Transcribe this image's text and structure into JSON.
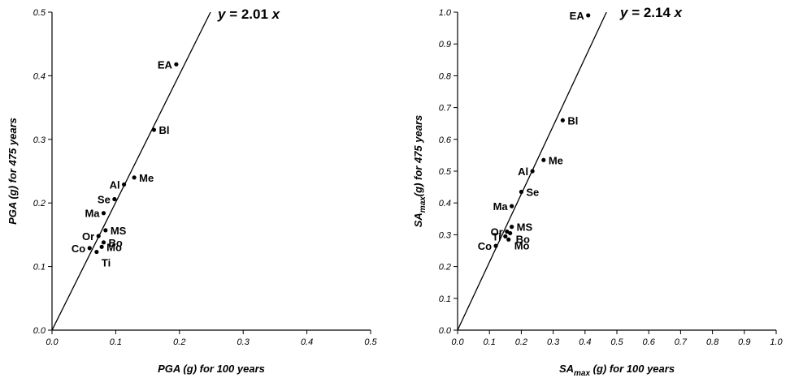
{
  "chart_data": [
    {
      "type": "scatter",
      "xlabel": "PGA (g) for 100 years",
      "ylabel": "PGA (g) for 475 years",
      "xlim": [
        0,
        0.5
      ],
      "ylim": [
        0,
        0.5
      ],
      "xticks": [
        "0.0",
        "0.1",
        "0.2",
        "0.3",
        "0.4",
        "0.5"
      ],
      "yticks": [
        "0.0",
        "0.1",
        "0.2",
        "0.3",
        "0.4",
        "0.5"
      ],
      "fit_slope": 2.01,
      "equation": {
        "prefix": "y",
        "middle": " = 2.01 ",
        "suffix": "x"
      },
      "points": [
        {
          "label": "EA",
          "x": 0.195,
          "y": 0.418,
          "pos": "left"
        },
        {
          "label": "Bl",
          "x": 0.16,
          "y": 0.315,
          "pos": "right"
        },
        {
          "label": "Me",
          "x": 0.129,
          "y": 0.24,
          "pos": "right"
        },
        {
          "label": "Al",
          "x": 0.113,
          "y": 0.229,
          "pos": "left"
        },
        {
          "label": "Se",
          "x": 0.098,
          "y": 0.206,
          "pos": "left"
        },
        {
          "label": "Ma",
          "x": 0.081,
          "y": 0.184,
          "pos": "left"
        },
        {
          "label": "MS",
          "x": 0.084,
          "y": 0.157,
          "pos": "right"
        },
        {
          "label": "Or",
          "x": 0.073,
          "y": 0.148,
          "pos": "left"
        },
        {
          "label": "Bo",
          "x": 0.081,
          "y": 0.138,
          "pos": "right"
        },
        {
          "label": "Mo",
          "x": 0.078,
          "y": 0.131,
          "pos": "right"
        },
        {
          "label": "Co",
          "x": 0.059,
          "y": 0.129,
          "pos": "left"
        },
        {
          "label": "Ti",
          "x": 0.07,
          "y": 0.123,
          "pos": "below"
        }
      ]
    },
    {
      "type": "scatter",
      "xlabel": {
        "pre": "SA",
        "sub": "max",
        "post": " (g) for 100 years"
      },
      "ylabel": {
        "pre": "SA",
        "sub": "max",
        "post": "(g) for 475 years"
      },
      "xlim": [
        0,
        1.0
      ],
      "ylim": [
        0,
        1.0
      ],
      "xticks": [
        "0.0",
        "0.1",
        "0.2",
        "0.3",
        "0.4",
        "0.5",
        "0.6",
        "0.7",
        "0.8",
        "0.9",
        "1.0"
      ],
      "yticks": [
        "0.0",
        "0.1",
        "0.2",
        "0.3",
        "0.4",
        "0.5",
        "0.6",
        "0.7",
        "0.8",
        "0.9",
        "1.0"
      ],
      "fit_slope": 2.14,
      "equation": {
        "prefix": "y",
        "middle": " = 2.14 ",
        "suffix": "x"
      },
      "points": [
        {
          "label": "EA",
          "x": 0.41,
          "y": 0.99,
          "pos": "left"
        },
        {
          "label": "Bl",
          "x": 0.33,
          "y": 0.66,
          "pos": "right"
        },
        {
          "label": "Me",
          "x": 0.27,
          "y": 0.535,
          "pos": "right"
        },
        {
          "label": "Al",
          "x": 0.235,
          "y": 0.5,
          "pos": "left"
        },
        {
          "label": "Se",
          "x": 0.2,
          "y": 0.435,
          "pos": "right"
        },
        {
          "label": "Ma",
          "x": 0.17,
          "y": 0.39,
          "pos": "left"
        },
        {
          "label": "MS",
          "x": 0.17,
          "y": 0.325,
          "pos": "right"
        },
        {
          "label": "Or",
          "x": 0.155,
          "y": 0.31,
          "pos": "left"
        },
        {
          "label": "Ti",
          "x": 0.15,
          "y": 0.295,
          "pos": "left"
        },
        {
          "label": "Bo",
          "x": 0.165,
          "y": 0.305,
          "pos": "right-below"
        },
        {
          "label": "Co",
          "x": 0.12,
          "y": 0.265,
          "pos": "left"
        },
        {
          "label": "Mo",
          "x": 0.16,
          "y": 0.285,
          "pos": "right-below"
        }
      ]
    }
  ]
}
